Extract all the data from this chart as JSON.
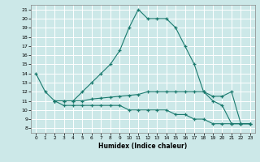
{
  "xlabel": "Humidex (Indice chaleur)",
  "bg_color": "#cce8e8",
  "grid_color": "#ffffff",
  "line_color": "#1a7a6e",
  "xlim": [
    -0.5,
    23.5
  ],
  "ylim": [
    7.5,
    21.5
  ],
  "yticks": [
    8,
    9,
    10,
    11,
    12,
    13,
    14,
    15,
    16,
    17,
    18,
    19,
    20,
    21
  ],
  "xticks": [
    0,
    1,
    2,
    3,
    4,
    5,
    6,
    7,
    8,
    9,
    10,
    11,
    12,
    13,
    14,
    15,
    16,
    17,
    18,
    19,
    20,
    21,
    22,
    23
  ],
  "line1_x": [
    0,
    1,
    2,
    3,
    4,
    5,
    6,
    7,
    8,
    9,
    10,
    11,
    12,
    13,
    14,
    15,
    16,
    17,
    18,
    19,
    20,
    21,
    22,
    23
  ],
  "line1_y": [
    14,
    12,
    11,
    11,
    11,
    12,
    13,
    14,
    15,
    16.5,
    19,
    21,
    20,
    20,
    20,
    19,
    17,
    15,
    12,
    11,
    10.5,
    8.5,
    8.5,
    8.5
  ],
  "line2_x": [
    2,
    3,
    4,
    5,
    6,
    7,
    8,
    9,
    10,
    11,
    12,
    13,
    14,
    15,
    16,
    17,
    18,
    19,
    20,
    21,
    22,
    23
  ],
  "line2_y": [
    11,
    11,
    11,
    11,
    11.2,
    11.3,
    11.4,
    11.5,
    11.6,
    11.7,
    12,
    12,
    12,
    12,
    12,
    12,
    12,
    11.5,
    11.5,
    12,
    8.5,
    8.5
  ],
  "line3_x": [
    2,
    3,
    4,
    5,
    6,
    7,
    8,
    9,
    10,
    11,
    12,
    13,
    14,
    15,
    16,
    17,
    18,
    19,
    20,
    21,
    22,
    23
  ],
  "line3_y": [
    11,
    10.5,
    10.5,
    10.5,
    10.5,
    10.5,
    10.5,
    10.5,
    10,
    10,
    10,
    10,
    10,
    9.5,
    9.5,
    9,
    9,
    8.5,
    8.5,
    8.5,
    8.5,
    8.5
  ]
}
